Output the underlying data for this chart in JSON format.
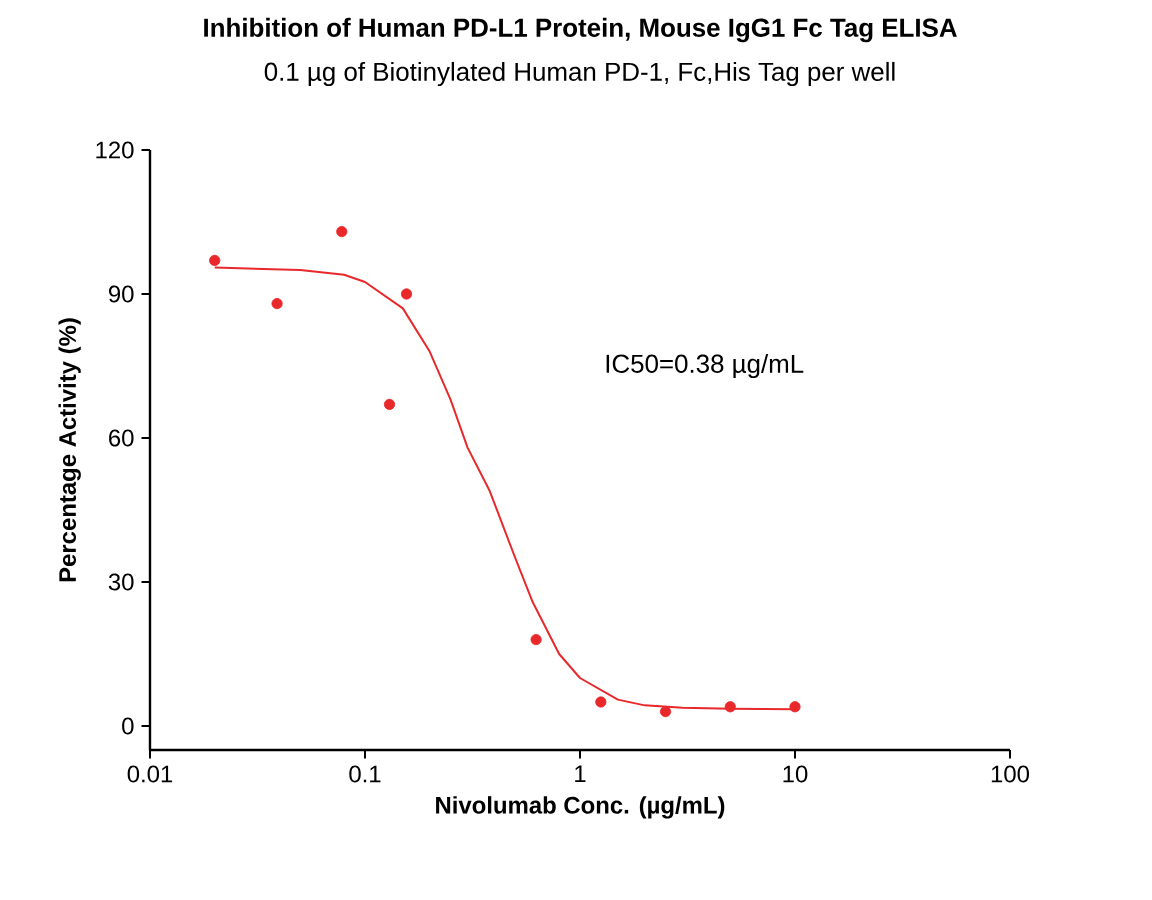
{
  "chart_data": {
    "type": "scatter",
    "title": "Inhibition of Human PD-L1 Protein, Mouse IgG1 Fc Tag ELISA",
    "subtitle": "0.1 µg of Biotinylated Human PD-1, Fc,His Tag per well",
    "xlabel": "Nivolumab Conc. (µg/mL)",
    "ylabel": "Percentage Activity (%)",
    "annotations": [
      "IC50=0.38 µg/mL"
    ],
    "log": "x",
    "grid": false,
    "xlim": [
      0.01,
      100
    ],
    "xticks": [
      0.01,
      0.1,
      1,
      10,
      100
    ],
    "ylim": [
      -5,
      120
    ],
    "yticks": [
      0,
      30,
      60,
      90,
      120
    ],
    "series": [
      {
        "marker": "circle",
        "color": "#e8282b",
        "x": [
          0.02,
          0.039,
          0.078,
          0.13,
          0.156,
          0.625,
          1.25,
          2.5,
          5,
          10
        ],
        "values": [
          97,
          88,
          103,
          67,
          90,
          18,
          5,
          3,
          4,
          4
        ]
      },
      {
        "type": "line",
        "color": "#e8282b",
        "marker": "none",
        "line_style": "solid",
        "x": [
          0.02,
          0.05,
          0.08,
          0.1,
          0.15,
          0.2,
          0.25,
          0.3,
          0.38,
          0.5,
          0.6,
          0.8,
          1,
          1.5,
          2,
          3,
          5,
          10
        ],
        "values": [
          95.5,
          95,
          94,
          92.5,
          87,
          78,
          68,
          58,
          49,
          35,
          26,
          15,
          10,
          5.5,
          4.3,
          3.8,
          3.6,
          3.5
        ]
      }
    ]
  }
}
